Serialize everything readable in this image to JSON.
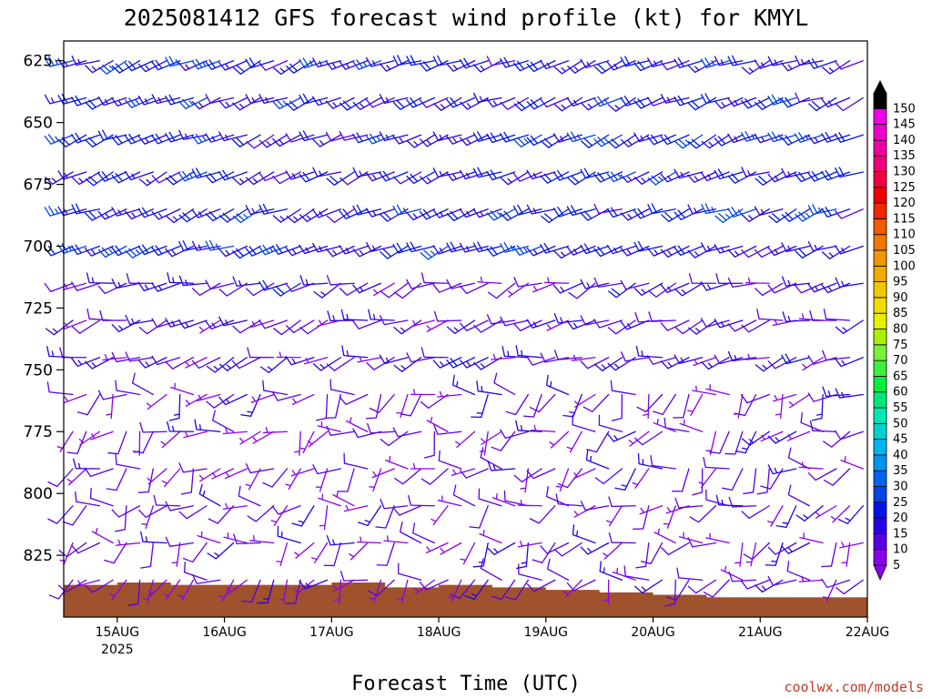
{
  "chart_data": {
    "type": "wind-barb time-height",
    "title": "2025081412 GFS forecast wind profile (kt) for KMYL",
    "xlabel": "Forecast Time (UTC)",
    "credit": "coolwx.com/models",
    "y_axis": {
      "label": "",
      "range": [
        617,
        850
      ],
      "ticks": [
        625,
        650,
        675,
        700,
        725,
        750,
        775,
        800,
        825
      ],
      "levels": [
        625,
        640,
        655,
        670,
        685,
        700,
        715,
        730,
        745,
        760,
        775,
        790,
        805,
        820,
        835
      ]
    },
    "x_axis": {
      "range": [
        "2025-08-14T12",
        "2025-08-22T00"
      ],
      "ticks": [
        {
          "label": "15AUG",
          "sublabel": "2025",
          "time": "2025-08-15T00"
        },
        {
          "label": "16AUG",
          "sublabel": "",
          "time": "2025-08-16T00"
        },
        {
          "label": "17AUG",
          "sublabel": "",
          "time": "2025-08-17T00"
        },
        {
          "label": "18AUG",
          "sublabel": "",
          "time": "2025-08-18T00"
        },
        {
          "label": "19AUG",
          "sublabel": "",
          "time": "2025-08-19T00"
        },
        {
          "label": "20AUG",
          "sublabel": "",
          "time": "2025-08-20T00"
        },
        {
          "label": "21AUG",
          "sublabel": "",
          "time": "2025-08-21T00"
        },
        {
          "label": "22AUG",
          "sublabel": "",
          "time": "2025-08-22T00"
        }
      ],
      "barb_interval_hours": 3
    },
    "colorbar": {
      "unit": "kt",
      "values": [
        5,
        10,
        15,
        20,
        25,
        30,
        35,
        40,
        45,
        50,
        55,
        60,
        65,
        70,
        75,
        80,
        85,
        90,
        95,
        100,
        105,
        110,
        115,
        120,
        125,
        130,
        135,
        140,
        145,
        150
      ],
      "colors": [
        "#8c00f0",
        "#5a00e6",
        "#2800e6",
        "#0014e6",
        "#0046e6",
        "#0064f0",
        "#0096f0",
        "#00b4f0",
        "#00d2d2",
        "#00e6b4",
        "#00e678",
        "#00f03c",
        "#3cf03c",
        "#78f03c",
        "#aaf000",
        "#e6f000",
        "#f0dc00",
        "#f0c800",
        "#f0aa00",
        "#f09600",
        "#f07800",
        "#f05a00",
        "#f02800",
        "#f00000",
        "#f0003c",
        "#f00078",
        "#f000a0",
        "#f000c8",
        "#f000e6",
        "#000000"
      ]
    },
    "terrain": {
      "color": "#a0522d",
      "surface_pressure_hpa": [
        {
          "time": "2025-08-14T12",
          "p": 837
        },
        {
          "time": "2025-08-15T00",
          "p": 836
        },
        {
          "time": "2025-08-15T12",
          "p": 837
        },
        {
          "time": "2025-08-16T00",
          "p": 837
        },
        {
          "time": "2025-08-16T12",
          "p": 837
        },
        {
          "time": "2025-08-17T00",
          "p": 836
        },
        {
          "time": "2025-08-17T12",
          "p": 838
        },
        {
          "time": "2025-08-18T00",
          "p": 837
        },
        {
          "time": "2025-08-18T12",
          "p": 838
        },
        {
          "time": "2025-08-19T00",
          "p": 839
        },
        {
          "time": "2025-08-19T12",
          "p": 840
        },
        {
          "time": "2025-08-20T00",
          "p": 841
        },
        {
          "time": "2025-08-20T12",
          "p": 842
        },
        {
          "time": "2025-08-21T00",
          "p": 842
        },
        {
          "time": "2025-08-21T12",
          "p": 842
        },
        {
          "time": "2025-08-22T00",
          "p": 841
        }
      ]
    },
    "wind_regimes": [
      {
        "p_max": 700,
        "speed_kt": [
          12,
          24
        ],
        "dir_deg": [
          235,
          260
        ]
      },
      {
        "p_max": 745,
        "speed_kt": [
          6,
          18
        ],
        "dir_deg": [
          230,
          275
        ]
      },
      {
        "p_max": 850,
        "speed_kt": [
          3,
          14
        ],
        "dir_deg": [
          180,
          300
        ]
      }
    ]
  }
}
